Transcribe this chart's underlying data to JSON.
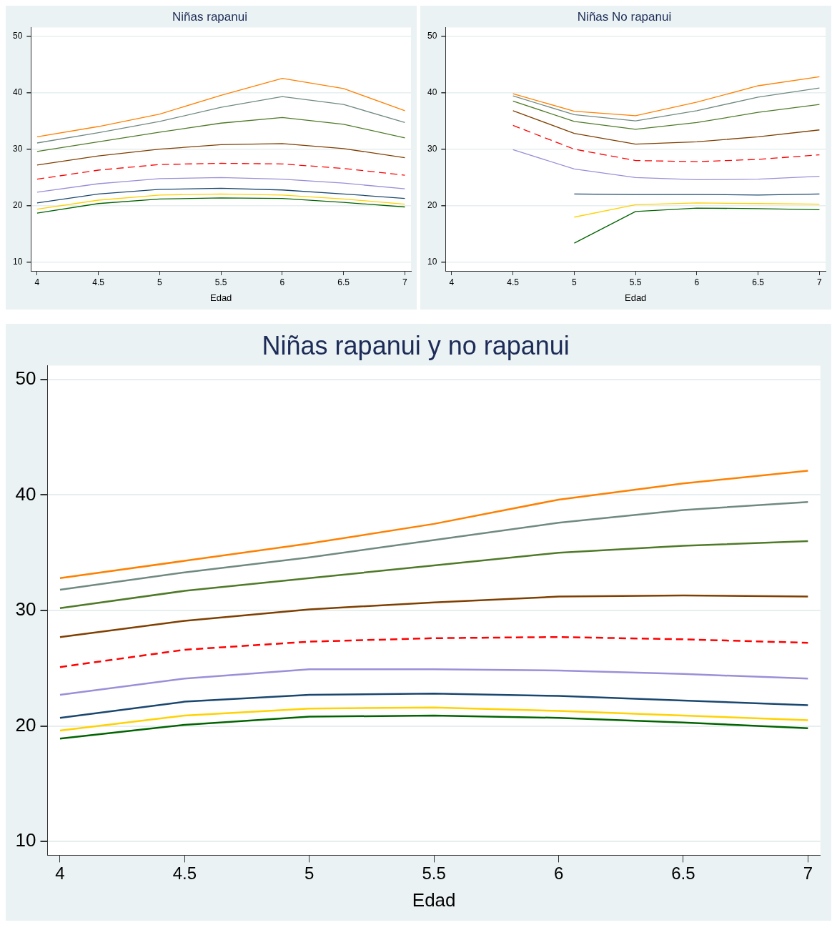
{
  "chart_data": [
    {
      "type": "line",
      "title": "Niñas rapanui",
      "xlabel": "Edad",
      "x": [
        4,
        4.5,
        5,
        5.5,
        6,
        6.5,
        7
      ],
      "xlim": [
        3.95,
        7.05
      ],
      "xticks": [
        4,
        4.5,
        5,
        5.5,
        6,
        6.5,
        7
      ],
      "ylim": [
        8.5,
        51.5
      ],
      "yticks": [
        10,
        20,
        30,
        40,
        50
      ],
      "grid": "y",
      "legend": false,
      "marker": "none",
      "series": [
        {
          "color": "#ff8000",
          "values": [
            32.2,
            34.0,
            36.2,
            39.5,
            42.5,
            40.7,
            36.8
          ]
        },
        {
          "color": "#708a80",
          "values": [
            31.1,
            32.9,
            34.9,
            37.4,
            39.3,
            37.9,
            34.7
          ]
        },
        {
          "color": "#4f7a28",
          "values": [
            29.6,
            31.3,
            33.0,
            34.6,
            35.6,
            34.4,
            32.0
          ]
        },
        {
          "color": "#7f3f00",
          "values": [
            27.2,
            28.8,
            30.0,
            30.8,
            31.0,
            30.1,
            28.5
          ]
        },
        {
          "color": "#ff0000",
          "line_style": "dashed",
          "values": [
            24.7,
            26.3,
            27.3,
            27.5,
            27.4,
            26.6,
            25.4
          ]
        },
        {
          "color": "#9b8fd8",
          "values": [
            22.4,
            23.9,
            24.8,
            25.0,
            24.7,
            24.0,
            23.0
          ]
        },
        {
          "color": "#1a476f",
          "values": [
            20.5,
            22.1,
            22.9,
            23.1,
            22.8,
            22.1,
            21.3
          ]
        },
        {
          "color": "#ffd200",
          "values": [
            19.4,
            21.0,
            21.9,
            22.1,
            21.9,
            21.2,
            20.3
          ]
        },
        {
          "color": "#006400",
          "values": [
            18.7,
            20.4,
            21.2,
            21.4,
            21.3,
            20.6,
            19.8
          ]
        }
      ]
    },
    {
      "type": "line",
      "title": "Niñas No rapanui",
      "xlabel": "Edad",
      "x": [
        4.5,
        5,
        5.5,
        6,
        6.5,
        7
      ],
      "xlim": [
        3.95,
        7.05
      ],
      "xticks": [
        4,
        4.5,
        5,
        5.5,
        6,
        6.5,
        7
      ],
      "ylim": [
        8.5,
        51.5
      ],
      "yticks": [
        10,
        20,
        30,
        40,
        50
      ],
      "grid": "y",
      "legend": false,
      "marker": "none",
      "series": [
        {
          "color": "#ff8000",
          "values": [
            39.8,
            36.7,
            35.9,
            38.3,
            41.2,
            42.8
          ]
        },
        {
          "color": "#708a80",
          "values": [
            39.4,
            36.1,
            35.0,
            36.8,
            39.2,
            40.8
          ]
        },
        {
          "color": "#4f7a28",
          "values": [
            38.5,
            34.9,
            33.5,
            34.7,
            36.5,
            37.9
          ]
        },
        {
          "color": "#7f3f00",
          "values": [
            36.8,
            32.8,
            30.9,
            31.3,
            32.2,
            33.4
          ]
        },
        {
          "color": "#ff0000",
          "line_style": "dashed",
          "values": [
            34.2,
            30.0,
            28.0,
            27.8,
            28.2,
            29.0
          ]
        },
        {
          "color": "#9b8fd8",
          "values": [
            29.9,
            26.5,
            25.0,
            24.6,
            24.7,
            25.2
          ]
        },
        {
          "color": "#1a476f",
          "values": [
            null,
            22.1,
            22.0,
            22.0,
            21.9,
            22.1
          ]
        },
        {
          "color": "#ffd200",
          "values": [
            null,
            18.0,
            20.2,
            20.5,
            20.4,
            20.3
          ]
        },
        {
          "color": "#006400",
          "values": [
            null,
            13.4,
            19.0,
            19.6,
            19.5,
            19.3
          ]
        }
      ]
    },
    {
      "type": "line",
      "title": "Niñas rapanui y no rapanui",
      "xlabel": "Edad",
      "x": [
        4,
        4.5,
        5,
        5.5,
        6,
        6.5,
        7
      ],
      "xlim": [
        3.95,
        7.05
      ],
      "xticks": [
        4,
        4.5,
        5,
        5.5,
        6,
        6.5,
        7
      ],
      "ylim": [
        8.8,
        51.2
      ],
      "yticks": [
        10,
        20,
        30,
        40,
        50
      ],
      "grid": "y",
      "legend": false,
      "marker": "none",
      "series": [
        {
          "color": "#ff8000",
          "values": [
            32.8,
            34.3,
            35.8,
            37.5,
            39.6,
            41.0,
            42.1
          ]
        },
        {
          "color": "#708a80",
          "values": [
            31.8,
            33.3,
            34.6,
            36.1,
            37.6,
            38.7,
            39.4
          ]
        },
        {
          "color": "#4f7a28",
          "values": [
            30.2,
            31.7,
            32.8,
            33.9,
            35.0,
            35.6,
            36.0
          ]
        },
        {
          "color": "#7f3f00",
          "values": [
            27.7,
            29.1,
            30.1,
            30.7,
            31.2,
            31.3,
            31.2
          ]
        },
        {
          "color": "#ff0000",
          "line_style": "dashed",
          "values": [
            25.1,
            26.6,
            27.3,
            27.6,
            27.7,
            27.5,
            27.2
          ]
        },
        {
          "color": "#9b8fd8",
          "values": [
            22.7,
            24.1,
            24.9,
            24.9,
            24.8,
            24.5,
            24.1
          ]
        },
        {
          "color": "#1a476f",
          "values": [
            20.7,
            22.1,
            22.7,
            22.8,
            22.6,
            22.2,
            21.8
          ]
        },
        {
          "color": "#ffd200",
          "values": [
            19.6,
            20.9,
            21.5,
            21.6,
            21.3,
            20.9,
            20.5
          ]
        },
        {
          "color": "#006400",
          "values": [
            18.9,
            20.1,
            20.8,
            20.9,
            20.7,
            20.3,
            19.8
          ]
        }
      ]
    }
  ]
}
